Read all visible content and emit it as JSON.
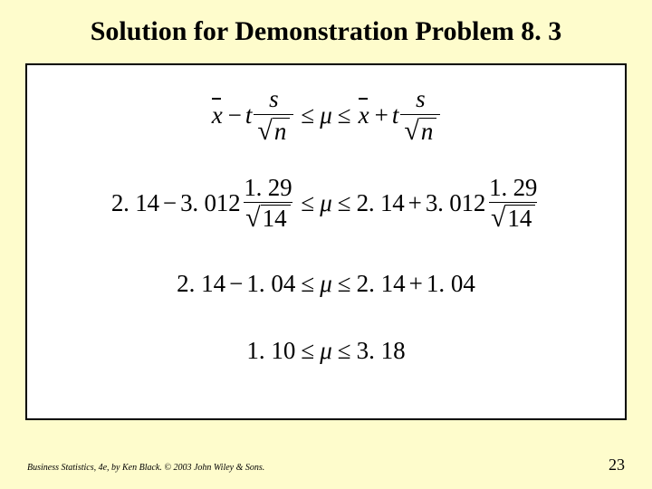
{
  "background_color": "#fefccc",
  "title": "Solution for Demonstration Problem 8. 3",
  "row1": {
    "x": "x",
    "t": "t",
    "s": "s",
    "n": "n",
    "minus": "−",
    "plus": "+",
    "le": "≤",
    "mu": "μ"
  },
  "row2": {
    "xval": "2. 14",
    "tval": "3. 012",
    "snum": "1. 29",
    "nval": "14",
    "minus": "−",
    "plus": "+",
    "le": "≤",
    "mu": "μ"
  },
  "row3": {
    "xval": "2. 14",
    "d": "1. 04",
    "minus": "−",
    "plus": "+",
    "le": "≤",
    "mu": "μ"
  },
  "row4": {
    "lo": "1. 10",
    "hi": "3. 18",
    "le": "≤",
    "mu": "μ"
  },
  "footer": {
    "credit": "Business Statistics, 4e, by Ken Black. © 2003 John Wiley & Sons.",
    "page": "23"
  },
  "style": {
    "title_fontsize": 30,
    "body_fontsize": 27,
    "border_color": "#000000",
    "text_color": "#000000",
    "box_background": "#ffffff"
  }
}
